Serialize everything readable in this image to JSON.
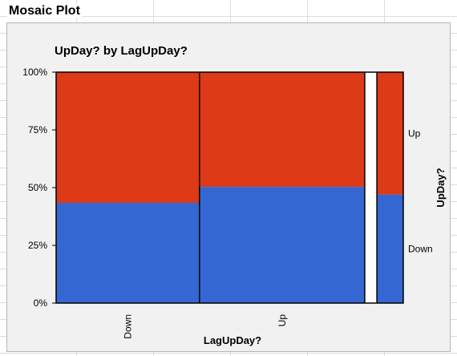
{
  "page": {
    "header_title": "Mosaic Plot"
  },
  "chart_data": {
    "type": "mosaic",
    "title": "UpDay? by LagUpDay?",
    "xlabel": "LagUpDay?",
    "ylabel": "UpDay?",
    "y_ticks": [
      "0%",
      "25%",
      "50%",
      "75%",
      "100%"
    ],
    "y_tick_values": [
      0,
      25,
      50,
      75,
      100
    ],
    "ylim": [
      0,
      100
    ],
    "series": [
      {
        "name": "Down",
        "color": "#3467d1"
      },
      {
        "name": "Up",
        "color": "#dd3a17"
      }
    ],
    "columns": [
      {
        "label": "Down",
        "width_fraction": 0.413,
        "down_percent": 43.4,
        "up_percent": 56.6
      },
      {
        "label": "Up",
        "width_fraction": 0.476,
        "down_percent": 50.3,
        "up_percent": 49.7
      },
      {
        "label": "",
        "width_fraction": 0.035,
        "down_percent": null,
        "up_percent": null
      },
      {
        "label": "",
        "width_fraction": 0.076,
        "down_percent": 47.0,
        "up_percent": 53.0
      }
    ],
    "legend_position": "right",
    "grid": false
  }
}
